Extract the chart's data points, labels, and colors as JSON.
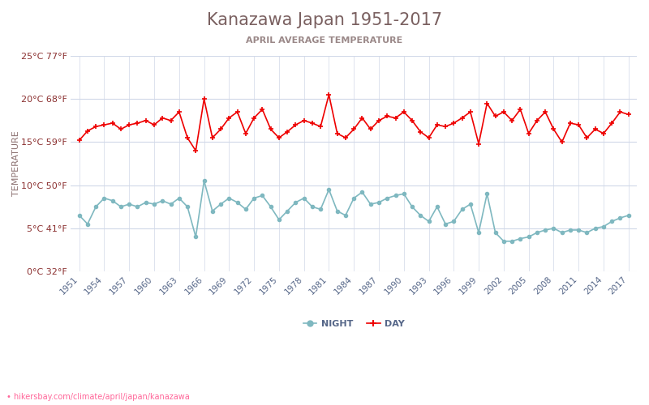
{
  "title": "Kanazawa Japan 1951-2017",
  "subtitle": "APRIL AVERAGE TEMPERATURE",
  "xlabel": "",
  "ylabel": "TEMPERATURE",
  "footer": "hikersbay.com/climate/april/japan/kanazawa",
  "years": [
    1951,
    1952,
    1953,
    1954,
    1955,
    1956,
    1957,
    1958,
    1959,
    1960,
    1961,
    1962,
    1963,
    1964,
    1965,
    1966,
    1967,
    1968,
    1969,
    1970,
    1971,
    1972,
    1973,
    1974,
    1975,
    1976,
    1977,
    1978,
    1979,
    1980,
    1981,
    1982,
    1983,
    1984,
    1985,
    1986,
    1987,
    1988,
    1989,
    1990,
    1991,
    1992,
    1993,
    1994,
    1995,
    1996,
    1997,
    1998,
    1999,
    2000,
    2001,
    2002,
    2003,
    2004,
    2005,
    2006,
    2007,
    2008,
    2009,
    2010,
    2011,
    2012,
    2013,
    2014,
    2015,
    2016,
    2017
  ],
  "day": [
    15.2,
    16.3,
    16.8,
    17.0,
    17.2,
    16.5,
    17.0,
    17.2,
    17.5,
    17.0,
    17.8,
    17.5,
    18.5,
    15.5,
    14.0,
    20.0,
    15.5,
    16.5,
    17.8,
    18.5,
    16.0,
    17.8,
    18.8,
    16.5,
    15.5,
    16.2,
    17.0,
    17.5,
    17.2,
    16.8,
    20.5,
    16.0,
    15.5,
    16.5,
    17.8,
    16.5,
    17.5,
    18.0,
    17.8,
    18.5,
    17.5,
    16.2,
    15.5,
    17.0,
    16.8,
    17.2,
    17.8,
    18.5,
    14.8,
    19.5,
    18.0,
    18.5,
    17.5,
    18.8,
    16.0,
    17.5,
    18.5,
    16.5,
    15.0,
    17.2,
    17.0,
    15.5,
    16.5,
    16.0,
    17.2,
    18.5,
    18.2
  ],
  "night": [
    6.5,
    5.5,
    7.5,
    8.5,
    8.2,
    7.5,
    7.8,
    7.5,
    8.0,
    7.8,
    8.2,
    7.8,
    8.5,
    7.5,
    4.0,
    10.5,
    7.0,
    7.8,
    8.5,
    8.0,
    7.2,
    8.5,
    8.8,
    7.5,
    6.0,
    7.0,
    8.0,
    8.5,
    7.5,
    7.2,
    9.5,
    7.0,
    6.5,
    8.5,
    9.2,
    7.8,
    8.0,
    8.5,
    8.8,
    9.0,
    7.5,
    6.5,
    5.8,
    7.5,
    5.5,
    5.8,
    7.2,
    7.8,
    4.5,
    9.0,
    4.5,
    3.5,
    3.5,
    3.8,
    4.0,
    4.5,
    4.8,
    5.0,
    4.5,
    4.8,
    4.8,
    4.5,
    5.0,
    5.2,
    5.8,
    6.2,
    6.5
  ],
  "day_color": "#ee0000",
  "night_color": "#7fb8c0",
  "title_color": "#7a6060",
  "subtitle_color": "#9a8888",
  "axis_label_color": "#8b7070",
  "tick_label_color": "#8b3030",
  "gridline_color": "#d0d8e8",
  "background_color": "#ffffff",
  "ylim": [
    0,
    25
  ],
  "yticks_c": [
    0,
    5,
    10,
    15,
    20,
    25
  ],
  "ytick_labels": [
    "0°C 32°F",
    "5°C 41°F",
    "10°C 50°F",
    "15°C 59°F",
    "20°C 68°F",
    "25°C 77°F"
  ],
  "xtick_years": [
    1951,
    1954,
    1957,
    1960,
    1963,
    1966,
    1969,
    1972,
    1975,
    1978,
    1981,
    1984,
    1987,
    1990,
    1993,
    1996,
    1999,
    2002,
    2005,
    2008,
    2011,
    2014,
    2017
  ],
  "legend_night": "NIGHT",
  "legend_day": "DAY",
  "footer_color": "#ff6699",
  "xtick_color": "#556688"
}
